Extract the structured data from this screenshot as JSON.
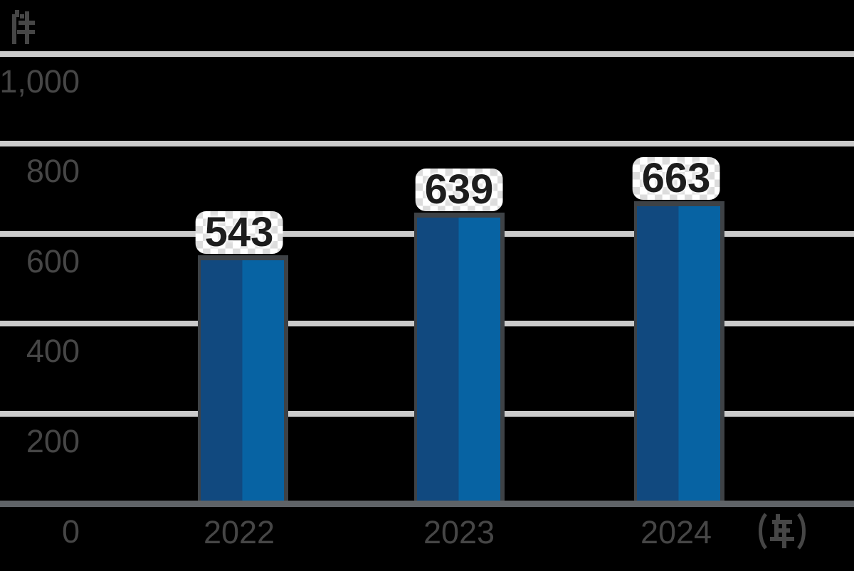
{
  "chart_data": {
    "type": "bar",
    "title": "",
    "categories": [
      "2022",
      "2023",
      "2024"
    ],
    "values": [
      543,
      639,
      663
    ],
    "value_labels": [
      "543",
      "639",
      "663"
    ],
    "y_axis": {
      "unit": "件",
      "max": 1000,
      "ticks": [
        {
          "value": 0,
          "label": "0"
        },
        {
          "value": 200,
          "label": "200"
        },
        {
          "value": 400,
          "label": "400"
        },
        {
          "value": 600,
          "label": "600"
        },
        {
          "value": 800,
          "label": "800"
        },
        {
          "value": 1000,
          "label": "1,000"
        }
      ]
    },
    "x_axis": {
      "unit": "(年)"
    },
    "grid": "horizontal-lines",
    "legend": "none",
    "bar_style": "two-tone-blue-with-dark-gray-edge"
  },
  "colors": {
    "background": "#000000",
    "gridline": "#cbcbcb",
    "axis_line": "#5f6367",
    "tick_text": "#464646",
    "bar_dark": "#11497f",
    "bar_light": "#0763a3",
    "bar_edge": "#3e4246",
    "value_text": "#1d1d1d",
    "value_halo": "#ffffff",
    "value_halo_checker": "#dcdcdc"
  }
}
